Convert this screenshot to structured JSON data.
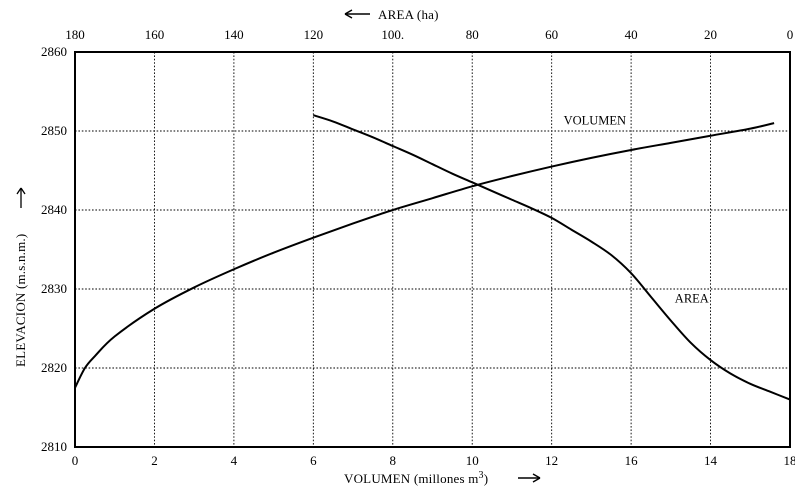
{
  "chart_data": {
    "type": "line",
    "title": "",
    "bottom_axis": {
      "label": "VOLUMEN (millones m",
      "label_sup": "3",
      "label_suffix": ")",
      "ticks": [
        "0",
        "2",
        "4",
        "6",
        "8",
        "10",
        "12",
        "16",
        "14",
        "18"
      ]
    },
    "top_axis": {
      "label": "AREA (ha)",
      "ticks": [
        "180",
        "160",
        "140",
        "120",
        "100.",
        "80",
        "60",
        "40",
        "20",
        "0"
      ]
    },
    "left_axis": {
      "label": "ELEVACION (m.s.n.m.)",
      "ticks": [
        "2810",
        "2820",
        "2830",
        "2840",
        "2850",
        "2860"
      ],
      "ylim": [
        2810,
        2860
      ]
    },
    "series": [
      {
        "name": "VOLUMEN",
        "x_axis": "bottom",
        "x": [
          0,
          0.25,
          0.5,
          1,
          2,
          3,
          4,
          5,
          6,
          7,
          8,
          9,
          10,
          11,
          12,
          13,
          14,
          15,
          16,
          17,
          17.6
        ],
        "y": [
          2817.5,
          2820,
          2821.5,
          2824,
          2827.5,
          2830.2,
          2832.5,
          2834.6,
          2836.5,
          2838.3,
          2840,
          2841.5,
          2843,
          2844.3,
          2845.5,
          2846.6,
          2847.6,
          2848.5,
          2849.4,
          2850.3,
          2851
        ]
      },
      {
        "name": "AREA",
        "x_axis": "top",
        "x": [
          120,
          115,
          110,
          105,
          100,
          95,
          90,
          85,
          80,
          75,
          70,
          65,
          60,
          55,
          50,
          45,
          40,
          35,
          30,
          25,
          20,
          15,
          10,
          5,
          0
        ],
        "y": [
          2852,
          2851.2,
          2850.2,
          2849.2,
          2848.1,
          2847,
          2845.8,
          2844.6,
          2843.5,
          2842.4,
          2841.3,
          2840.2,
          2839,
          2837.5,
          2836,
          2834.3,
          2832,
          2829,
          2826,
          2823.2,
          2821,
          2819.3,
          2818,
          2817,
          2816
        ]
      }
    ],
    "curve_labels": [
      "VOLUMEN",
      "AREA"
    ],
    "grid": true
  }
}
